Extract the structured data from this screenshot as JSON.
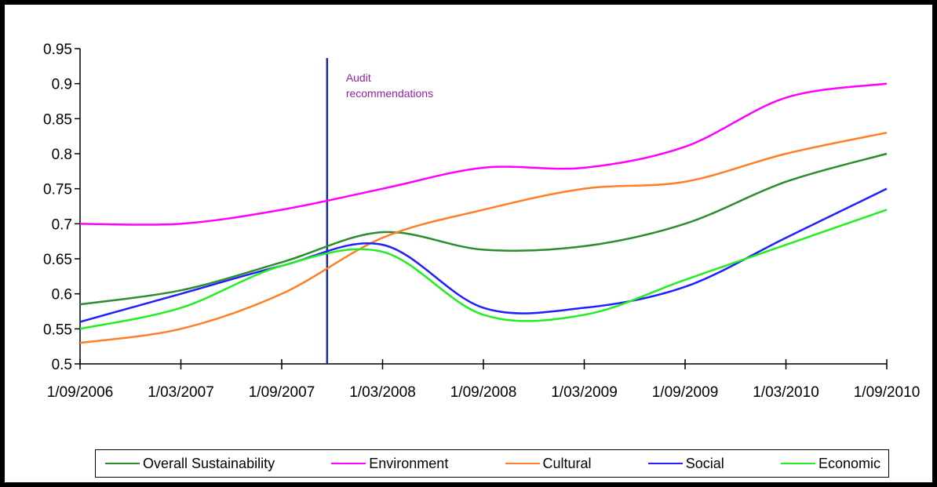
{
  "chart_data": {
    "type": "line",
    "title": "",
    "xlabel": "",
    "ylabel": "",
    "ylim": [
      0.5,
      0.95
    ],
    "yticks": [
      0.5,
      0.55,
      0.6,
      0.65,
      0.7,
      0.75,
      0.8,
      0.85,
      0.9,
      0.95
    ],
    "ytick_labels": [
      "0.5",
      "0.55",
      "0.6",
      "0.65",
      "0.7",
      "0.75",
      "0.8",
      "0.85",
      "0.9",
      "0.95"
    ],
    "x_tick_labels": [
      "1/09/2006",
      "1/03/2007",
      "1/09/2007",
      "1/03/2008",
      "1/09/2008",
      "1/03/2009",
      "1/09/2009",
      "1/03/2010",
      "1/09/2010"
    ],
    "grid": false,
    "legend_position": "bottom",
    "series": [
      {
        "name": "Overall Sustainability",
        "color": "#2e8b2e",
        "values": [
          0.585,
          0.605,
          0.645,
          0.688,
          0.663,
          0.668,
          0.7,
          0.76,
          0.8
        ]
      },
      {
        "name": "Environment",
        "color": "#ff00ff",
        "values": [
          0.7,
          0.7,
          0.72,
          0.75,
          0.78,
          0.78,
          0.81,
          0.88,
          0.9
        ]
      },
      {
        "name": "Cultural",
        "color": "#ff7f27",
        "values": [
          0.53,
          0.55,
          0.6,
          0.68,
          0.72,
          0.75,
          0.76,
          0.8,
          0.83
        ]
      },
      {
        "name": "Social",
        "color": "#1f1fff",
        "values": [
          0.56,
          0.6,
          0.64,
          0.67,
          0.58,
          0.58,
          0.61,
          0.68,
          0.75
        ]
      },
      {
        "name": "Economic",
        "color": "#22ee22",
        "values": [
          0.55,
          0.58,
          0.64,
          0.66,
          0.57,
          0.57,
          0.62,
          0.67,
          0.72
        ]
      }
    ],
    "annotations": [
      {
        "text_lines": [
          "Audit",
          "recommendations"
        ],
        "x_value": "1/12/2007",
        "color": "#9b1fa0",
        "line_color": "#1f2a8c"
      }
    ]
  }
}
